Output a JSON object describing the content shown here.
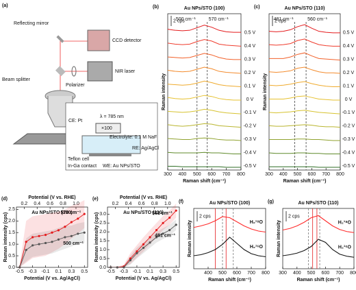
{
  "a": {
    "label": "(a)",
    "texts": [
      "Reflecting mirror",
      "CCD detector",
      "Beam splitter",
      "NIR laser",
      "Polarizer",
      "λ = 785 nm",
      "×100",
      "CE: Pt",
      "Electrolyte: 0.1 M NaF",
      "RE: Ag/AgCl",
      "Teflon cell",
      "In-Ga contact",
      "WE: Au NPs/STO"
    ]
  },
  "panels": [
    {
      "type": "stack",
      "label": "(b)",
      "title": "Au NPs/STO (100)",
      "xlabel": "Raman shift (cm⁻¹)",
      "ylabel": "Raman intensity",
      "scale": {
        "value": 2,
        "label": "2 cps"
      },
      "xlim": [
        300,
        800
      ],
      "xticks": [
        300,
        400,
        500,
        600,
        700,
        800
      ],
      "lines": [
        500,
        570
      ],
      "line_labels": [
        "500 cm⁻¹",
        "570 cm⁻¹"
      ],
      "x": [
        300,
        350,
        400,
        450,
        500,
        550,
        600,
        650,
        700,
        750,
        800
      ],
      "series": [
        {
          "name": "0.5 V",
          "color": "#e41a1c",
          "values": [
            1.2,
            1.0,
            0.9,
            1.0,
            1.5,
            2.0,
            1.6,
            1.0,
            0.7,
            0.6,
            0.6
          ]
        },
        {
          "name": "0.4 V",
          "color": "#ef3b2c",
          "values": [
            1.1,
            0.9,
            0.8,
            0.9,
            1.4,
            1.8,
            1.5,
            0.9,
            0.7,
            0.6,
            0.5
          ]
        },
        {
          "name": "0.3 V",
          "color": "#f2612a",
          "values": [
            1.0,
            0.9,
            0.8,
            0.9,
            1.3,
            1.7,
            1.4,
            0.9,
            0.6,
            0.5,
            0.5
          ]
        },
        {
          "name": "0.2 V",
          "color": "#f38a2b",
          "values": [
            1.0,
            0.8,
            0.7,
            0.8,
            1.2,
            1.6,
            1.3,
            0.8,
            0.6,
            0.5,
            0.4
          ]
        },
        {
          "name": "0.1 V",
          "color": "#efaa2c",
          "values": [
            0.9,
            0.8,
            0.7,
            0.8,
            1.1,
            1.5,
            1.2,
            0.8,
            0.6,
            0.5,
            0.4
          ]
        },
        {
          "name": "0 V",
          "color": "#e6c02d",
          "values": [
            0.9,
            0.7,
            0.6,
            0.7,
            1.0,
            1.3,
            1.1,
            0.7,
            0.5,
            0.4,
            0.4
          ]
        },
        {
          "name": "-0.1 V",
          "color": "#d6c22e",
          "values": [
            0.8,
            0.7,
            0.6,
            0.7,
            0.9,
            1.2,
            1.0,
            0.7,
            0.5,
            0.4,
            0.3
          ]
        },
        {
          "name": "-0.2 V",
          "color": "#b9b52e",
          "values": [
            0.8,
            0.6,
            0.5,
            0.6,
            0.8,
            1.0,
            0.9,
            0.6,
            0.5,
            0.4,
            0.3
          ]
        },
        {
          "name": "-0.3 V",
          "color": "#8fa22e",
          "values": [
            0.7,
            0.6,
            0.5,
            0.5,
            0.7,
            0.8,
            0.7,
            0.5,
            0.4,
            0.4,
            0.3
          ]
        },
        {
          "name": "-0.4 V",
          "color": "#5f8a2a",
          "values": [
            0.6,
            0.5,
            0.5,
            0.5,
            0.5,
            0.6,
            0.5,
            0.5,
            0.4,
            0.3,
            0.3
          ]
        },
        {
          "name": "-0.5 V",
          "color": "#2f6e25",
          "values": [
            0.5,
            0.5,
            0.4,
            0.4,
            0.4,
            0.4,
            0.4,
            0.4,
            0.3,
            0.3,
            0.3
          ]
        }
      ]
    },
    {
      "type": "stack",
      "label": "(c)",
      "title": "Au NPs/STO (110)",
      "xlabel": "Raman shift (cm⁻¹)",
      "ylabel": "Raman intensity",
      "scale": {
        "value": 2,
        "label": "2 cps"
      },
      "xlim": [
        300,
        800
      ],
      "xticks": [
        300,
        400,
        500,
        600,
        700,
        800
      ],
      "lines": [
        481,
        560
      ],
      "line_labels": [
        "481 cm⁻¹",
        "560 cm⁻¹"
      ],
      "x": [
        300,
        350,
        400,
        450,
        500,
        550,
        600,
        650,
        700,
        750,
        800
      ],
      "series": [
        {
          "name": "0.5 V",
          "color": "#e41a1c",
          "values": [
            0.8,
            0.7,
            0.8,
            1.1,
            1.7,
            2.1,
            1.4,
            0.8,
            0.6,
            0.5,
            0.5
          ]
        },
        {
          "name": "0.4 V",
          "color": "#ef3b2c",
          "values": [
            0.8,
            0.7,
            0.8,
            1.0,
            1.6,
            1.9,
            1.3,
            0.8,
            0.6,
            0.5,
            0.5
          ]
        },
        {
          "name": "0.3 V",
          "color": "#f2612a",
          "values": [
            0.7,
            0.7,
            0.7,
            1.0,
            1.5,
            1.8,
            1.2,
            0.7,
            0.6,
            0.5,
            0.4
          ]
        },
        {
          "name": "0.2 V",
          "color": "#f38a2b",
          "values": [
            0.7,
            0.6,
            0.7,
            0.9,
            1.4,
            1.6,
            1.1,
            0.7,
            0.5,
            0.5,
            0.4
          ]
        },
        {
          "name": "0.1 V",
          "color": "#efaa2c",
          "values": [
            0.7,
            0.6,
            0.7,
            0.9,
            1.2,
            1.4,
            1.0,
            0.7,
            0.5,
            0.4,
            0.4
          ]
        },
        {
          "name": "0 V",
          "color": "#e6c02d",
          "values": [
            0.6,
            0.6,
            0.6,
            0.8,
            1.1,
            1.2,
            0.9,
            0.6,
            0.5,
            0.4,
            0.4
          ]
        },
        {
          "name": "-0.1 V",
          "color": "#d6c22e",
          "values": [
            0.6,
            0.5,
            0.6,
            0.7,
            0.9,
            1.0,
            0.8,
            0.6,
            0.5,
            0.4,
            0.3
          ]
        },
        {
          "name": "-0.2 V",
          "color": "#b9b52e",
          "values": [
            0.6,
            0.5,
            0.5,
            0.6,
            0.7,
            0.8,
            0.7,
            0.5,
            0.4,
            0.4,
            0.3
          ]
        },
        {
          "name": "-0.3 V",
          "color": "#8fa22e",
          "values": [
            0.5,
            0.5,
            0.5,
            0.5,
            0.6,
            0.6,
            0.5,
            0.5,
            0.4,
            0.3,
            0.3
          ]
        },
        {
          "name": "-0.4 V",
          "color": "#5f8a2a",
          "values": [
            0.5,
            0.4,
            0.4,
            0.4,
            0.5,
            0.5,
            0.4,
            0.4,
            0.3,
            0.3,
            0.3
          ]
        },
        {
          "name": "-0.5 V",
          "color": "#2f6e25",
          "values": [
            0.4,
            0.4,
            0.4,
            0.4,
            0.4,
            0.4,
            0.4,
            0.3,
            0.3,
            0.3,
            0.3
          ]
        }
      ]
    },
    {
      "type": "line",
      "label": "(d)",
      "title": "Au NPs/STO (100)",
      "xlabel": "Potential (V vs. Ag/AgCl)",
      "x2label": "Potential (V vs. RHE)",
      "ylabel": "Raman intensity (cps)",
      "xlim": [
        -0.55,
        0.55
      ],
      "xticks": [
        -0.5,
        -0.3,
        -0.1,
        0.1,
        0.3,
        0.5
      ],
      "x2lim": [
        0.08,
        1.18
      ],
      "x2ticks": [
        0.2,
        0.4,
        0.6,
        0.8,
        {
          "value": 1.0,
          "label": "1.0"
        }
      ],
      "ylim": [
        0,
        2.6
      ],
      "yticks": [
        {
          "value": 0,
          "label": "0.0"
        },
        0.5,
        {
          "value": 1,
          "label": "1.0"
        },
        1.5,
        {
          "value": 2,
          "label": "2.0"
        },
        2.5
      ],
      "x": [
        -0.5,
        -0.4,
        -0.3,
        -0.2,
        -0.1,
        0,
        0.1,
        0.2,
        0.3,
        0.4,
        0.5
      ],
      "series": [
        {
          "name": "570 cm⁻¹",
          "color": "#e41a1c",
          "values": [
            0,
            1.1,
            1.3,
            1.35,
            1.4,
            1.5,
            1.6,
            1.75,
            1.95,
            2.1,
            2.3
          ],
          "band": [
            0.1,
            0.9,
            0.9,
            0.9,
            0.9,
            0.85,
            0.8,
            0.75,
            0.7,
            0.65,
            0.6
          ]
        },
        {
          "name": "500 cm⁻¹",
          "color": "#555555",
          "values": [
            0,
            0.75,
            0.95,
            1.0,
            1.05,
            1.1,
            1.2,
            1.3,
            1.35,
            1.45,
            1.5
          ],
          "band": [
            0.1,
            0.5,
            0.5,
            0.5,
            0.5,
            0.5,
            0.5,
            0.5,
            0.45,
            0.45,
            0.45
          ]
        }
      ]
    },
    {
      "type": "line",
      "label": "(e)",
      "title": "Au NPs/STO (110)",
      "xlabel": "Potential (V vs. Ag/AgCl)",
      "x2label": "Potential (V vs. RHE)",
      "ylabel": "Raman intensity (cps)",
      "xlim": [
        -0.55,
        0.55
      ],
      "xticks": [
        -0.5,
        -0.3,
        -0.1,
        0.1,
        0.3,
        0.5
      ],
      "x2lim": [
        0.08,
        1.18
      ],
      "x2ticks": [
        0.2,
        0.4,
        0.6,
        0.8,
        {
          "value": 1.0,
          "label": "1.0"
        }
      ],
      "ylim": [
        0,
        3.4
      ],
      "yticks": [
        {
          "value": 0,
          "label": "0.0"
        },
        0.5,
        {
          "value": 1,
          "label": "1.0"
        },
        1.5,
        {
          "value": 2,
          "label": "2.0"
        },
        2.5,
        {
          "value": 3,
          "label": "3.0"
        }
      ],
      "x": [
        -0.5,
        -0.4,
        -0.3,
        -0.2,
        -0.1,
        0,
        0.1,
        0.2,
        0.3,
        0.4,
        0.5
      ],
      "series": [
        {
          "name": "561 cm⁻¹",
          "color": "#e41a1c",
          "values": [
            0,
            0,
            0.05,
            0.5,
            0.9,
            1.3,
            1.7,
            2.1,
            2.5,
            2.8,
            3.2
          ],
          "band": [
            0.05,
            0.05,
            0.1,
            0.3,
            0.35,
            0.4,
            0.4,
            0.4,
            0.4,
            0.4,
            0.4
          ]
        },
        {
          "name": "481 cm⁻¹",
          "color": "#555555",
          "values": [
            0,
            0,
            0,
            0.4,
            0.8,
            1.1,
            1.4,
            1.7,
            1.9,
            2.1,
            2.4
          ],
          "band": [
            0.05,
            0.05,
            0.1,
            0.25,
            0.3,
            0.3,
            0.3,
            0.3,
            0.3,
            0.3,
            0.3
          ]
        }
      ]
    },
    {
      "type": "pair",
      "label": "(f)",
      "title": "Au NPs/STO (100)",
      "xlabel": "Raman shift (cm⁻¹)",
      "ylabel": "Raman intensity",
      "scale": {
        "value": 2,
        "label": "2 cps"
      },
      "xlim": [
        300,
        800
      ],
      "xticks": [
        400,
        500,
        600,
        700,
        800
      ],
      "x": [
        300,
        350,
        400,
        450,
        500,
        550,
        600,
        650,
        700,
        750,
        800
      ],
      "vlines": [
        {
          "x": 450,
          "color": "#e41a1c"
        },
        {
          "x": 525,
          "color": "#e41a1c"
        },
        {
          "x": 500,
          "color": "#777777"
        },
        {
          "x": 575,
          "color": "#777777"
        }
      ],
      "series": [
        {
          "name": "H₂¹⁸O",
          "color": "#ff2a2a",
          "values": [
            7.5,
            7.8,
            8.2,
            8.8,
            9.6,
            9.4,
            8.6,
            7.8,
            7.2,
            6.8,
            6.6
          ]
        },
        {
          "name": "H₂¹⁶O",
          "color": "#111111",
          "values": [
            2.0,
            2.2,
            2.6,
            3.2,
            4.2,
            5.6,
            4.4,
            3.2,
            2.4,
            2.0,
            1.8
          ]
        }
      ]
    },
    {
      "type": "pair",
      "label": "(g)",
      "title": "Au NPs/STO (110)",
      "xlabel": "Raman shift (cm⁻¹)",
      "ylabel": "Raman intensity",
      "scale": {
        "value": 2,
        "label": "2 cps"
      },
      "xlim": [
        300,
        800
      ],
      "xticks": [
        300,
        400,
        500,
        600,
        700,
        800
      ],
      "x": [
        300,
        350,
        400,
        450,
        500,
        550,
        600,
        650,
        700,
        750,
        800
      ],
      "vlines": [
        {
          "x": 510,
          "color": "#e41a1c"
        },
        {
          "x": 540,
          "color": "#e41a1c"
        },
        {
          "x": 480,
          "color": "#777777"
        },
        {
          "x": 560,
          "color": "#777777"
        }
      ],
      "series": [
        {
          "name": "H₂¹⁸O",
          "color": "#ff2a2a",
          "values": [
            7.0,
            7.3,
            7.8,
            8.5,
            9.4,
            9.8,
            8.8,
            7.8,
            7.1,
            6.7,
            6.5
          ]
        },
        {
          "name": "H₂¹⁶O",
          "color": "#111111",
          "values": [
            2.0,
            2.2,
            2.5,
            3.0,
            3.8,
            5.2,
            4.6,
            3.2,
            2.3,
            1.9,
            1.7
          ]
        }
      ]
    }
  ]
}
